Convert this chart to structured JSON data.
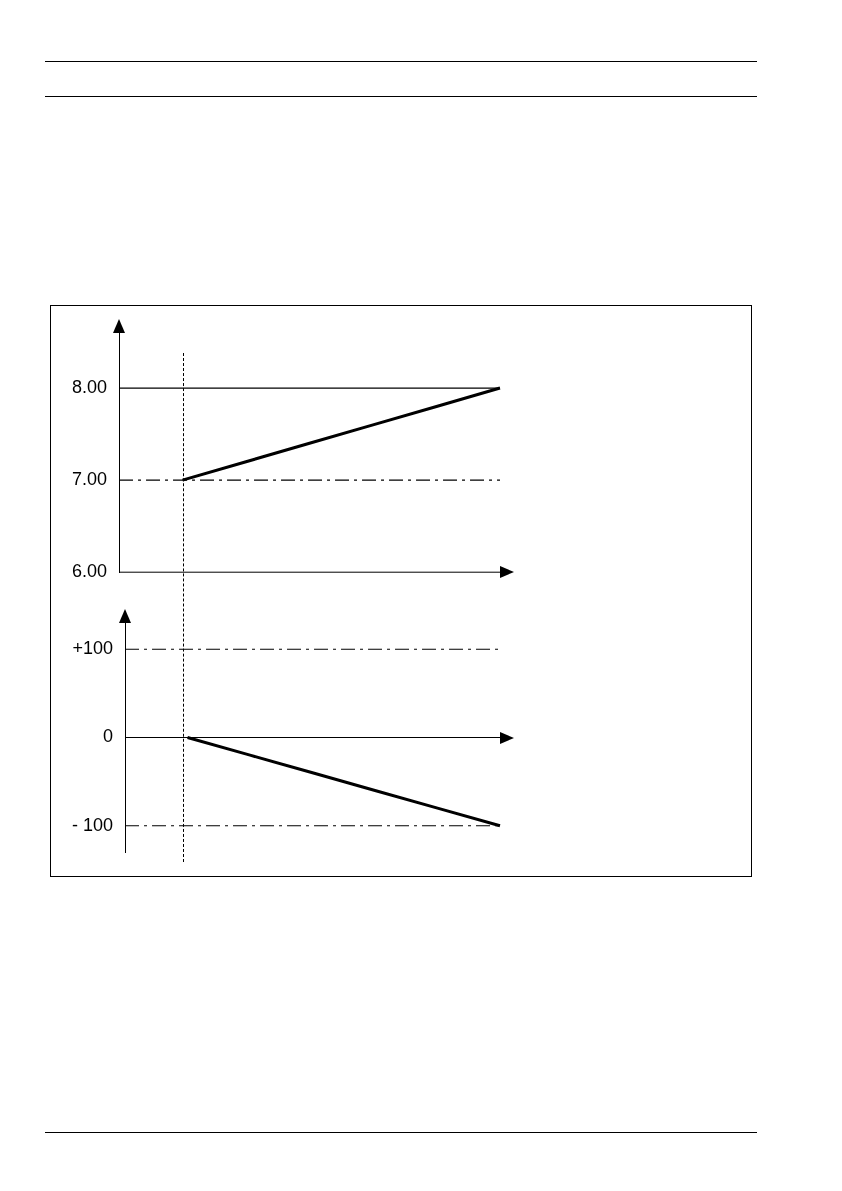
{
  "chart_data": [
    {
      "type": "line",
      "categories": [
        null,
        null,
        null,
        null,
        null,
        null,
        null
      ],
      "series": [
        {
          "color": "#000000",
          "values": [
            null,
            7,
            7.2,
            7.4,
            7.6,
            7.8,
            8
          ]
        }
      ],
      "ylim": [
        6,
        8.6
      ],
      "yticks": [
        {
          "value": 6,
          "label": "6.00"
        },
        {
          "value": 7,
          "label": "7.00"
        },
        {
          "value": 8,
          "label": "8.00"
        }
      ],
      "ref_lines": [
        {
          "axis": "y",
          "value": 8,
          "color": "#000000",
          "line_style": "solid"
        },
        {
          "axis": "y",
          "value": 7,
          "color": "#000000",
          "line_style": "dashed"
        }
      ],
      "grid": false,
      "legend": false,
      "marker": "none",
      "line_style": "solid"
    },
    {
      "type": "line",
      "categories": [
        null,
        null,
        null,
        null,
        null,
        null,
        null
      ],
      "series": [
        {
          "color": "#000000",
          "values": [
            null,
            0,
            -20,
            -40,
            -60,
            -80,
            -100
          ]
        }
      ],
      "ylim": [
        -130,
        130
      ],
      "yticks": [
        {
          "value": -100,
          "label": "- 100"
        },
        0,
        {
          "value": 100,
          "label": "+100"
        }
      ],
      "ref_lines": [
        {
          "axis": "y",
          "value": 100,
          "color": "#000000",
          "line_style": "dashed"
        },
        {
          "axis": "y",
          "value": -100,
          "color": "#000000",
          "line_style": "dashed"
        }
      ],
      "grid": false,
      "legend": false,
      "marker": "none",
      "line_style": "solid"
    }
  ]
}
